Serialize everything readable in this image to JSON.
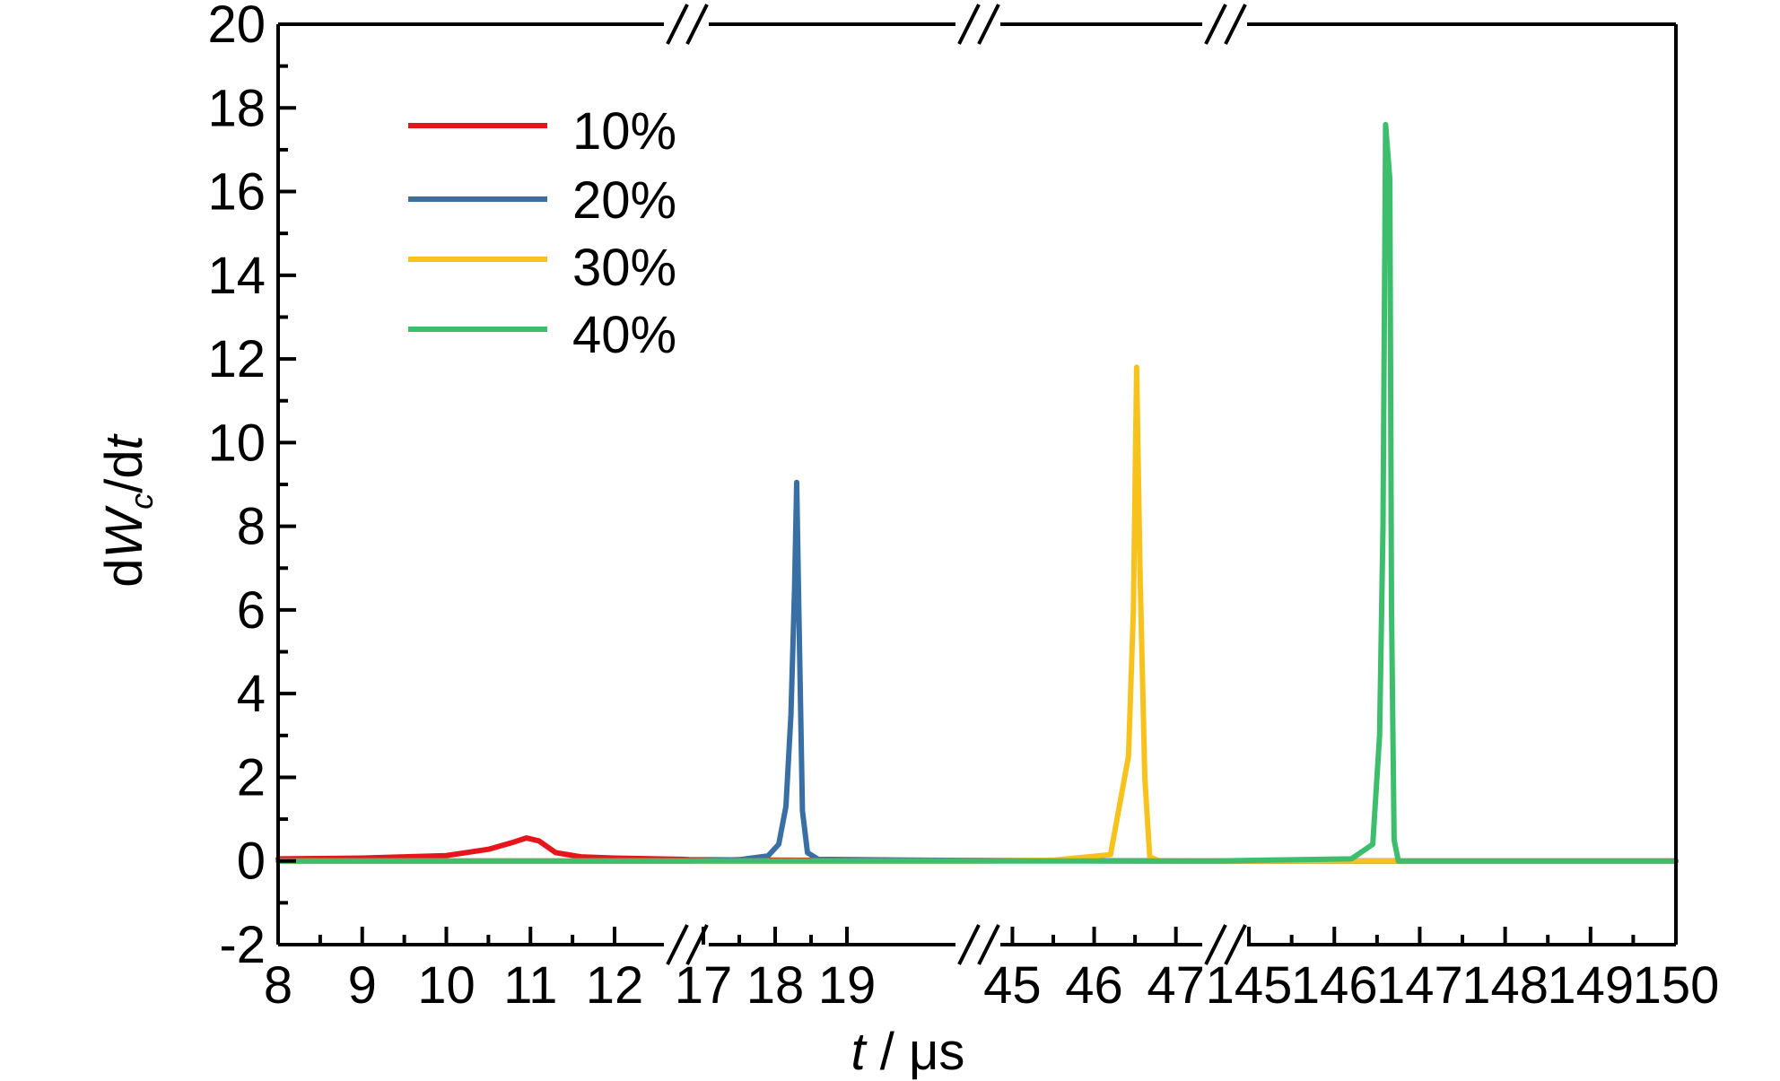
{
  "chart_data": {
    "type": "line",
    "title": "",
    "xlabel": "t / μs",
    "ylabel": "dWc/dt",
    "xlabel_parts": {
      "var": "t",
      "unit": " / μs"
    },
    "ylabel_parts": {
      "pre": "d",
      "var": "W",
      "sub": "c",
      "post": "/d",
      "var2": "t"
    },
    "ylim": [
      -2,
      20
    ],
    "y_ticks": [
      -2,
      0,
      2,
      4,
      6,
      8,
      10,
      12,
      14,
      16,
      18,
      20
    ],
    "y_tick_labels": [
      "-2",
      "0",
      "2",
      "4",
      "6",
      "8",
      "10",
      "12",
      "14",
      "16",
      "18",
      "20"
    ],
    "x_axis_broken": true,
    "x_segments": [
      {
        "range": [
          8,
          12.8
        ],
        "ticks": [
          8,
          9,
          10,
          11,
          12
        ],
        "tick_labels": [
          "8",
          "9",
          "10",
          "11",
          "12"
        ]
      },
      {
        "range": [
          16.8,
          19.9
        ],
        "ticks": [
          17,
          18,
          19
        ],
        "tick_labels": [
          "17",
          "18",
          "19"
        ]
      },
      {
        "range": [
          44.6,
          47.3
        ],
        "ticks": [
          45,
          46,
          47
        ],
        "tick_labels": [
          "45",
          "46",
          "47"
        ]
      },
      {
        "range": [
          144.6,
          150
        ],
        "ticks": [
          145,
          146,
          147,
          148,
          149,
          150
        ],
        "tick_labels": [
          "145",
          "146",
          "147",
          "148",
          "149",
          "150"
        ]
      }
    ],
    "grid": false,
    "legend_position": "top-left",
    "series": [
      {
        "name": "10%",
        "color": "#e8141c",
        "points": [
          [
            8,
            0.05
          ],
          [
            9,
            0.07
          ],
          [
            10,
            0.13
          ],
          [
            10.5,
            0.28
          ],
          [
            10.8,
            0.45
          ],
          [
            10.95,
            0.55
          ],
          [
            11.1,
            0.48
          ],
          [
            11.3,
            0.2
          ],
          [
            11.6,
            0.1
          ],
          [
            12,
            0.07
          ],
          [
            12.8,
            0.04
          ],
          [
            16.8,
            0.03
          ],
          [
            18,
            0.02
          ],
          [
            19.9,
            0.01
          ],
          [
            44.6,
            0.01
          ],
          [
            47.3,
            0.0
          ],
          [
            144.6,
            0.0
          ],
          [
            150,
            0.0
          ]
        ]
      },
      {
        "name": "20%",
        "color": "#386fa4",
        "points": [
          [
            8,
            0.0
          ],
          [
            12.8,
            0.0
          ],
          [
            16.8,
            0.0
          ],
          [
            17.5,
            0.03
          ],
          [
            17.9,
            0.12
          ],
          [
            18.05,
            0.4
          ],
          [
            18.15,
            1.3
          ],
          [
            18.22,
            3.5
          ],
          [
            18.27,
            6.5
          ],
          [
            18.3,
            9.05
          ],
          [
            18.33,
            6.0
          ],
          [
            18.38,
            1.2
          ],
          [
            18.45,
            0.2
          ],
          [
            18.6,
            0.04
          ],
          [
            19.9,
            0.02
          ],
          [
            44.6,
            0.01
          ],
          [
            47.3,
            0.0
          ],
          [
            150,
            0.0
          ]
        ]
      },
      {
        "name": "30%",
        "color": "#f8c21c",
        "points": [
          [
            8,
            0.0
          ],
          [
            12.8,
            0.0
          ],
          [
            16.8,
            0.0
          ],
          [
            19.9,
            0.0
          ],
          [
            44.6,
            0.0
          ],
          [
            45.5,
            0.02
          ],
          [
            46.2,
            0.15
          ],
          [
            46.42,
            2.5
          ],
          [
            46.48,
            6.0
          ],
          [
            46.52,
            11.8
          ],
          [
            46.56,
            7.0
          ],
          [
            46.62,
            2.0
          ],
          [
            46.68,
            0.1
          ],
          [
            46.8,
            0.0
          ],
          [
            47.3,
            0.0
          ],
          [
            144.6,
            0.0
          ],
          [
            150,
            0.0
          ]
        ]
      },
      {
        "name": "40%",
        "color": "#3cbe6c",
        "points": [
          [
            8,
            0.0
          ],
          [
            12.8,
            0.0
          ],
          [
            16.8,
            0.0
          ],
          [
            19.9,
            0.0
          ],
          [
            44.6,
            0.0
          ],
          [
            47.3,
            0.0
          ],
          [
            144.6,
            0.0
          ],
          [
            146.2,
            0.05
          ],
          [
            146.45,
            0.4
          ],
          [
            146.53,
            3.0
          ],
          [
            146.57,
            8.0
          ],
          [
            146.6,
            17.6
          ],
          [
            146.65,
            16.3
          ],
          [
            146.67,
            6.0
          ],
          [
            146.7,
            0.5
          ],
          [
            146.75,
            0.0
          ],
          [
            148,
            0.0
          ],
          [
            150,
            0.0
          ]
        ]
      }
    ]
  }
}
